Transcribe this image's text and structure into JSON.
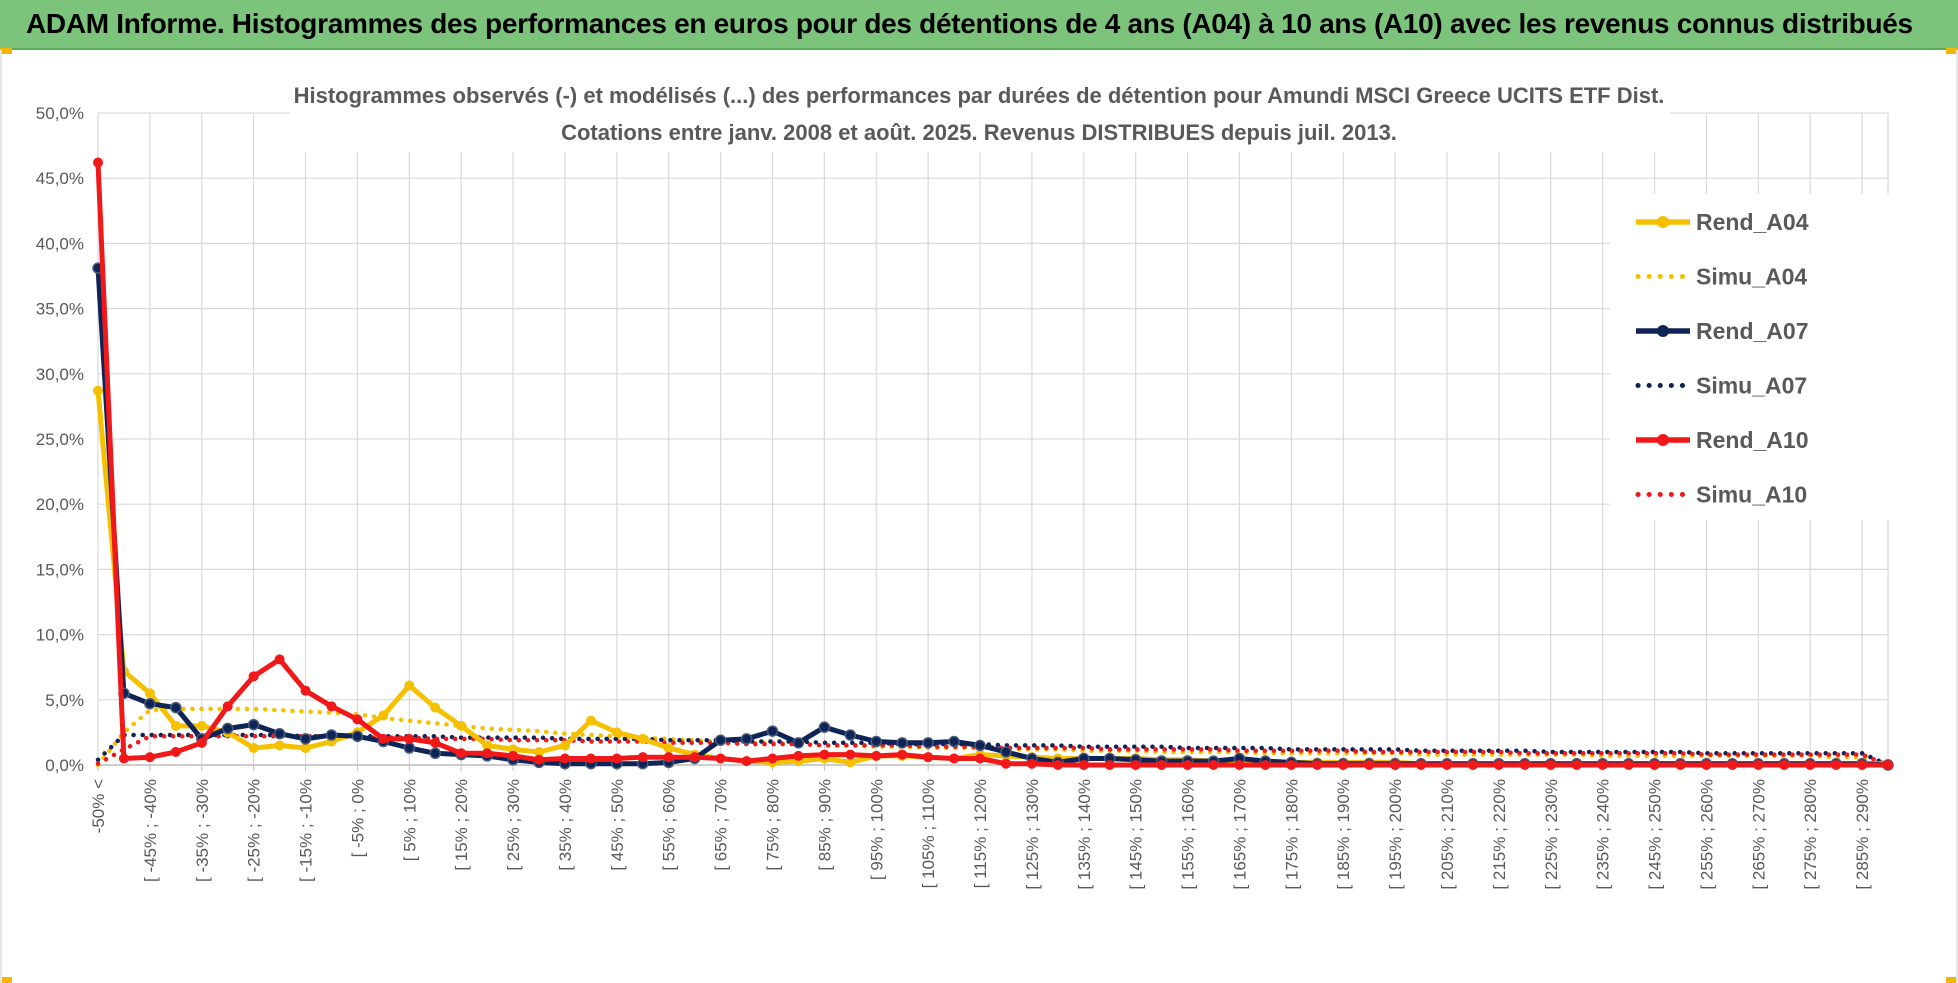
{
  "banner": {
    "title": "ADAM Informe. Histogrammes des performances en euros pour des détentions de 4 ans (A04) à 10 ans (A10) avec les revenus connus distribués",
    "color": "#7cc47b"
  },
  "chart_data": {
    "type": "line",
    "title_line1": "Histogrammes observés (-) et modélisés (...) des performances par durées de détention pour Amundi MSCI Greece UCITS ETF Dist.",
    "title_line2": "Cotations entre janv. 2008 et août. 2025. Revenus DISTRIBUES depuis juil. 2013.",
    "ylim": [
      0,
      50
    ],
    "yticks": [
      "0,0%",
      "5,0%",
      "10,0%",
      "15,0%",
      "20,0%",
      "25,0%",
      "30,0%",
      "35,0%",
      "40,0%",
      "45,0%",
      "50,0%"
    ],
    "grid": true,
    "legend_position": "right",
    "categories_count": 70,
    "x_labels": [
      "-50% <",
      "[ -45% ; -40%",
      "[ -35% ; -30%",
      "[ -25% ; -20%",
      "[ -15% ; -10%",
      "[ -5% ; 0%",
      "[ 5% ; 10%",
      "[ 15% ; 20%",
      "[ 25% ; 30%",
      "[ 35% ; 40%",
      "[ 45% ; 50%",
      "[ 55% ; 60%",
      "[ 65% ; 70%",
      "[ 75% ; 80%",
      "[ 85% ; 90%",
      "[ 95% ; 100%",
      "[ 105% ; 110%",
      "[ 115% ; 120%",
      "[ 125% ; 130%",
      "[ 135% ; 140%",
      "[ 145% ; 150%",
      "[ 155% ; 160%",
      "[ 165% ; 170%",
      "[ 175% ; 180%",
      "[ 185% ; 190%",
      "[ 195% ; 200%",
      "[ 205% ; 210%",
      "[ 215% ; 220%",
      "[ 225% ; 230%",
      "[ 235% ; 240%",
      "[ 245% ; 250%",
      "[ 255% ; 260%",
      "[ 265% ; 270%",
      "[ 275% ; 280%",
      "[ 285% ; 290%"
    ],
    "series": [
      {
        "name": "Rend_A04",
        "style": "solid",
        "color": "#f5c000",
        "values": [
          28.7,
          7.2,
          5.5,
          3.0,
          3.0,
          2.5,
          1.3,
          1.5,
          1.3,
          1.8,
          2.5,
          3.8,
          6.1,
          4.4,
          3.0,
          1.5,
          1.2,
          1.0,
          1.5,
          3.4,
          2.5,
          2.0,
          1.3,
          0.8,
          0.5,
          0.3,
          0.2,
          0.3,
          0.5,
          0.2,
          0.7,
          0.7,
          0.6,
          0.5,
          0.8,
          0.7,
          0.6,
          0.5,
          0.5,
          0.5,
          0.5,
          0.4,
          0.4,
          0.3,
          0.3,
          0.3,
          0.2,
          0.2,
          0.2,
          0.2,
          0.2,
          0.1,
          0.1,
          0.1,
          0.1,
          0.1,
          0.1,
          0.1,
          0.1,
          0.1,
          0.1,
          0.1,
          0.1,
          0.1,
          0.1,
          0.1,
          0.1,
          0.1,
          0.1,
          0.1
        ]
      },
      {
        "name": "Simu_A04",
        "style": "dotted",
        "color": "#f5c000",
        "values": [
          0.0,
          2.5,
          4.2,
          4.3,
          4.3,
          4.3,
          4.3,
          4.2,
          4.1,
          4.0,
          3.9,
          3.6,
          3.4,
          3.2,
          3.0,
          2.8,
          2.7,
          2.6,
          2.4,
          2.3,
          2.2,
          2.1,
          2.0,
          1.9,
          1.8,
          1.7,
          1.7,
          1.6,
          1.5,
          1.5,
          1.4,
          1.4,
          1.3,
          1.3,
          1.3,
          1.2,
          1.2,
          1.2,
          1.1,
          1.1,
          1.1,
          1.0,
          1.0,
          1.0,
          1.0,
          0.9,
          0.9,
          0.9,
          0.9,
          0.9,
          0.9,
          0.8,
          0.8,
          0.8,
          0.8,
          0.8,
          0.8,
          0.8,
          0.7,
          0.7,
          0.7,
          0.7,
          0.7,
          0.7,
          0.7,
          0.7,
          0.7,
          0.6,
          0.6,
          0.0
        ]
      },
      {
        "name": "Rend_A07",
        "style": "solid",
        "color": "#0f2456",
        "values": [
          38.1,
          5.5,
          4.7,
          4.4,
          2.0,
          2.8,
          3.1,
          2.4,
          2.0,
          2.3,
          2.2,
          1.8,
          1.3,
          0.9,
          0.8,
          0.7,
          0.4,
          0.2,
          0.1,
          0.1,
          0.1,
          0.1,
          0.2,
          0.5,
          1.9,
          2.0,
          2.6,
          1.7,
          2.9,
          2.3,
          1.8,
          1.7,
          1.7,
          1.8,
          1.5,
          1.0,
          0.5,
          0.2,
          0.5,
          0.5,
          0.4,
          0.3,
          0.3,
          0.3,
          0.5,
          0.3,
          0.2,
          0.1,
          0.1,
          0.1,
          0.1,
          0.1,
          0.1,
          0.1,
          0.1,
          0.1,
          0.1,
          0.1,
          0.1,
          0.1,
          0.1,
          0.1,
          0.1,
          0.1,
          0.1,
          0.1,
          0.1,
          0.1,
          0.1,
          0.0
        ]
      },
      {
        "name": "Simu_A07",
        "style": "dotted",
        "color": "#0f2456",
        "values": [
          0.4,
          2.3,
          2.3,
          2.3,
          2.3,
          2.3,
          2.3,
          2.3,
          2.2,
          2.2,
          2.2,
          2.2,
          2.2,
          2.2,
          2.1,
          2.1,
          2.1,
          2.1,
          2.0,
          2.0,
          2.0,
          2.0,
          1.9,
          1.9,
          1.9,
          1.8,
          1.8,
          1.8,
          1.7,
          1.7,
          1.7,
          1.6,
          1.6,
          1.6,
          1.6,
          1.5,
          1.5,
          1.5,
          1.4,
          1.4,
          1.4,
          1.4,
          1.3,
          1.3,
          1.3,
          1.3,
          1.2,
          1.2,
          1.2,
          1.2,
          1.2,
          1.1,
          1.1,
          1.1,
          1.1,
          1.1,
          1.0,
          1.0,
          1.0,
          1.0,
          1.0,
          1.0,
          0.9,
          0.9,
          0.9,
          0.9,
          0.9,
          0.9,
          0.9,
          0.0
        ]
      },
      {
        "name": "Rend_A10",
        "style": "solid",
        "color": "#f01818",
        "values": [
          46.2,
          0.5,
          0.6,
          1.0,
          1.7,
          4.5,
          6.8,
          8.1,
          5.7,
          4.5,
          3.5,
          2.0,
          2.0,
          1.7,
          0.9,
          0.9,
          0.7,
          0.4,
          0.5,
          0.5,
          0.5,
          0.6,
          0.6,
          0.6,
          0.5,
          0.3,
          0.5,
          0.7,
          0.8,
          0.8,
          0.7,
          0.8,
          0.6,
          0.5,
          0.5,
          0.1,
          0.1,
          0.0,
          0.0,
          0.0,
          0.0,
          0.0,
          0.0,
          0.0,
          0.0,
          0.0,
          0.0,
          0.0,
          0.0,
          0.0,
          0.0,
          0.0,
          0.0,
          0.0,
          0.0,
          0.0,
          0.0,
          0.0,
          0.0,
          0.0,
          0.0,
          0.0,
          0.0,
          0.0,
          0.0,
          0.0,
          0.0,
          0.0,
          0.0,
          0.0
        ]
      },
      {
        "name": "Simu_A10",
        "style": "dotted",
        "color": "#f01818",
        "values": [
          0.1,
          1.2,
          2.2,
          2.2,
          2.2,
          2.2,
          2.2,
          2.2,
          2.2,
          2.2,
          2.1,
          2.1,
          2.1,
          2.0,
          2.0,
          2.0,
          1.9,
          1.9,
          1.9,
          1.8,
          1.8,
          1.8,
          1.7,
          1.7,
          1.7,
          1.6,
          1.6,
          1.6,
          1.5,
          1.5,
          1.5,
          1.5,
          1.4,
          1.4,
          1.4,
          1.3,
          1.3,
          1.3,
          1.3,
          1.2,
          1.2,
          1.2,
          1.2,
          1.2,
          1.1,
          1.1,
          1.1,
          1.1,
          1.1,
          1.0,
          1.0,
          1.0,
          1.0,
          1.0,
          1.0,
          0.9,
          0.9,
          0.9,
          0.9,
          0.9,
          0.9,
          0.9,
          0.8,
          0.8,
          0.8,
          0.8,
          0.8,
          0.8,
          0.8,
          0.0
        ]
      }
    ]
  }
}
